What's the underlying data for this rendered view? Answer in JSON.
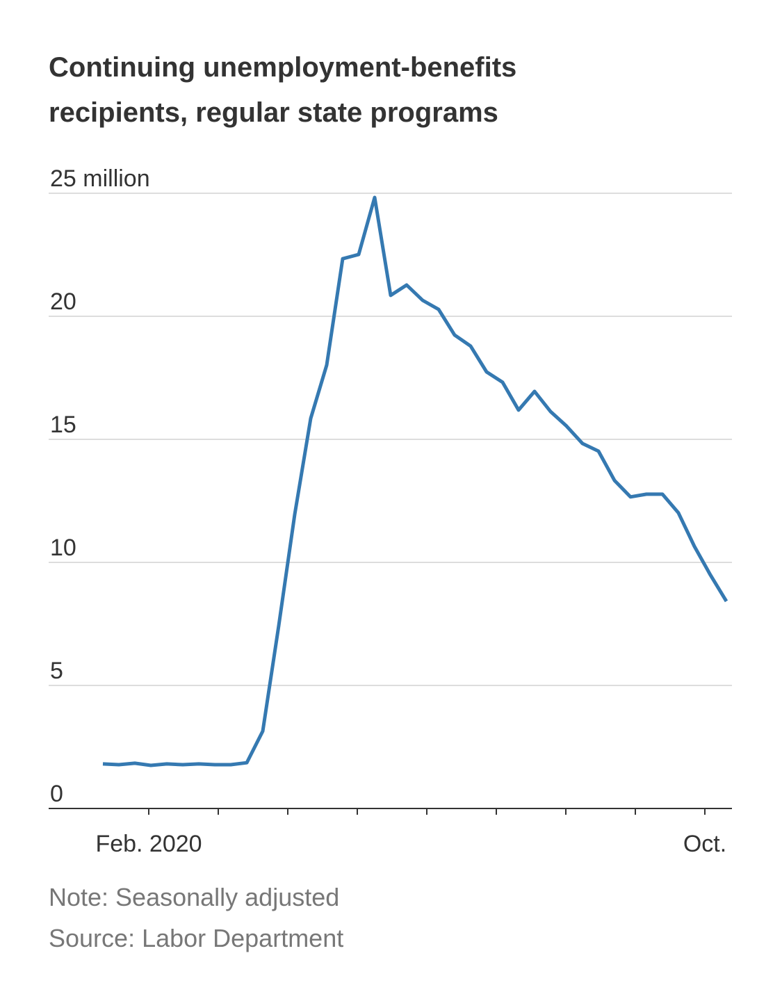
{
  "chart_data": {
    "type": "line",
    "title": "Continuing unemployment-benefits recipients, regular state programs",
    "note": "Note: Seasonally adjusted",
    "source": "Source: Labor Department",
    "x": [
      1.34,
      1.57,
      1.8,
      2.03,
      2.26,
      2.49,
      2.72,
      2.95,
      3.18,
      3.41,
      3.64,
      3.87,
      4.1,
      4.33,
      4.56,
      4.79,
      5.02,
      5.25,
      5.48,
      5.71,
      5.94,
      6.17,
      6.4,
      6.63,
      6.86,
      7.09,
      7.32,
      7.55,
      7.78,
      8.01,
      8.24,
      8.47,
      8.7,
      8.93,
      9.16,
      9.39,
      9.62,
      9.85,
      10.08,
      10.31
    ],
    "series": [
      {
        "color": "#3579b1",
        "values": [
          1.81,
          1.78,
          1.84,
          1.75,
          1.81,
          1.78,
          1.81,
          1.78,
          1.78,
          1.86,
          3.14,
          7.43,
          11.95,
          15.85,
          18.02,
          22.34,
          22.51,
          24.83,
          20.85,
          21.27,
          20.65,
          20.28,
          19.24,
          18.79,
          17.74,
          17.32,
          16.19,
          16.95,
          16.13,
          15.54,
          14.83,
          14.52,
          13.33,
          12.66,
          12.77,
          12.77,
          12.01,
          10.65,
          9.49,
          8.42
        ]
      }
    ],
    "xlim": [
      0.56,
      10.39
    ],
    "xticks": [
      {
        "value": 2,
        "label": "Feb. 2020"
      },
      3,
      4,
      5,
      6,
      7,
      8,
      9,
      {
        "value": 10,
        "label": "Oct."
      }
    ],
    "ylim": [
      0,
      25
    ],
    "yticks": [
      0,
      5,
      10,
      15,
      20,
      {
        "value": 25,
        "label": "25 million"
      }
    ],
    "grid": true
  }
}
